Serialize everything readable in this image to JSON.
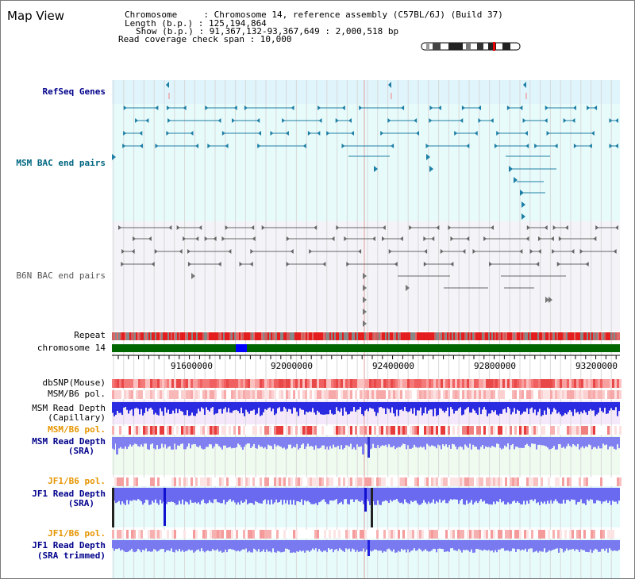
{
  "title": "Map View",
  "info": {
    "line1": "Chromosome     : Chromosome 14, reference assembly (C57BL/6J) (Build 37)",
    "line2": "Length (b.p.) : 125,194,864",
    "line3": "Show (b.p.) : 91,367,132-93,367,649 : 2,000,518 bp",
    "line4": "Read coverage check span : 10,000"
  },
  "tracks": {
    "refseq": "RefSeq Genes",
    "msm_bac": "MSM BAC end pairs",
    "b6n_bac": "B6N BAC end pairs",
    "repeat": "Repeat",
    "chromosome": "chromosome 14",
    "dbsnp": "dbSNP(Mouse)",
    "msm_pol": "MSM/B6 pol.",
    "msm_depth_cap_1": "MSM Read Depth",
    "msm_depth_cap_2": "(Capillary)",
    "msm_pol2": "MSM/B6 pol.",
    "msm_depth_sra_1": "MSM Read Depth",
    "msm_depth_sra_2": "(SRA)",
    "jf1_pol": "JF1/B6 pol.",
    "jf1_depth_sra_1": "JF1 Read Depth",
    "jf1_depth_sra_2": "(SRA)",
    "jf1_pol2": "JF1/B6 pol.",
    "jf1_depth_trim_1": "JF1 Read Depth",
    "jf1_depth_trim_2": "(SRA trimmed)"
  },
  "axis": {
    "ticks": [
      "91600000",
      "92000000",
      "92400000",
      "92800000",
      "93200000"
    ]
  },
  "colors": {
    "refseq_label": "#00008b",
    "msm_bac_label": "#006680",
    "b6n_bac_label": "#555555",
    "orange_label": "#e69500",
    "blue_label": "#00008b",
    "chromosome_bar": "#006600",
    "highlight": "#0000ff"
  }
}
